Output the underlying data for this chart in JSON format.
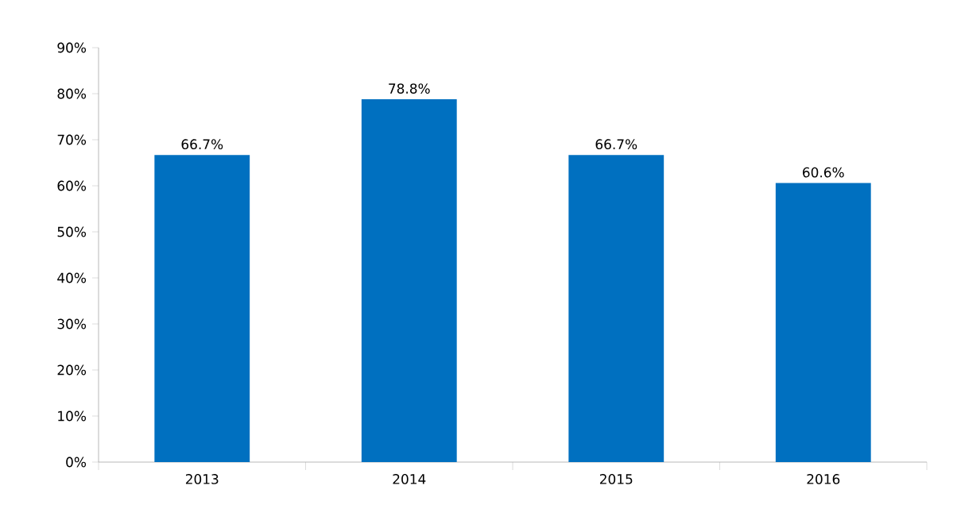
{
  "chart_data": {
    "type": "bar",
    "categories": [
      "2013",
      "2014",
      "2015",
      "2016"
    ],
    "values": [
      66.7,
      78.8,
      66.7,
      60.6
    ],
    "value_labels": [
      "66.7%",
      "78.8%",
      "66.7%",
      "60.6%"
    ],
    "color": "#0070c0",
    "ylim": [
      0,
      90
    ],
    "yticks": [
      {
        "value": 0,
        "label": "0%"
      },
      {
        "value": 10,
        "label": "10%"
      },
      {
        "value": 20,
        "label": "20%"
      },
      {
        "value": 30,
        "label": "30%"
      },
      {
        "value": 40,
        "label": "40%"
      },
      {
        "value": 50,
        "label": "50%"
      },
      {
        "value": 60,
        "label": "60%"
      },
      {
        "value": 70,
        "label": "70%"
      },
      {
        "value": 80,
        "label": "80%"
      },
      {
        "value": 90,
        "label": "90%"
      }
    ],
    "grid": false
  }
}
